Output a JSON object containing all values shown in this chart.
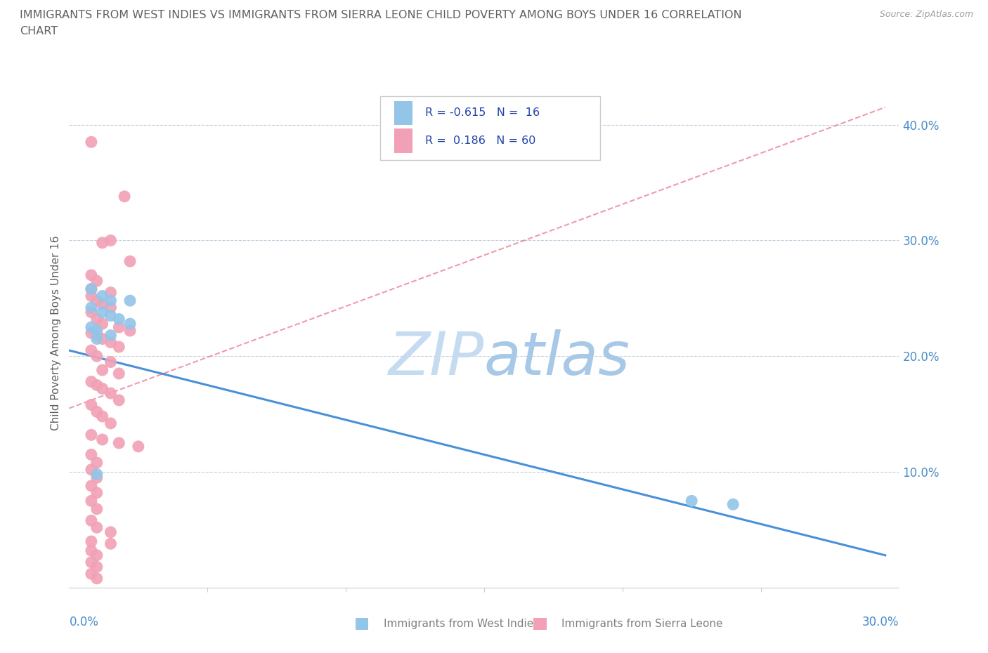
{
  "title_line1": "IMMIGRANTS FROM WEST INDIES VS IMMIGRANTS FROM SIERRA LEONE CHILD POVERTY AMONG BOYS UNDER 16 CORRELATION",
  "title_line2": "CHART",
  "source": "Source: ZipAtlas.com",
  "ylabel": "Child Poverty Among Boys Under 16",
  "color_blue": "#92C5E8",
  "color_pink": "#F2A0B5",
  "color_blue_line": "#4A90D9",
  "color_pink_line": "#E87090",
  "color_grid": "#C0D0E0",
  "watermark_zip": "#C5DCF0",
  "watermark_atlas": "#A8C8E8",
  "title_color": "#606060",
  "axis_label_color": "#4A8CC8",
  "legend_color": "#2244AA",
  "source_color": "#A0A0A0",
  "bottom_legend_color": "#808080",
  "xlim": [
    0.0,
    0.3
  ],
  "ylim": [
    0.0,
    0.44
  ],
  "ytick_vals": [
    0.1,
    0.2,
    0.3,
    0.4
  ],
  "xtick_vals": [
    0.05,
    0.1,
    0.15,
    0.2,
    0.25
  ],
  "blue_line_x": [
    0.0,
    0.295
  ],
  "blue_line_y": [
    0.205,
    0.028
  ],
  "pink_line_x": [
    0.0,
    0.295
  ],
  "pink_line_y": [
    0.155,
    0.415
  ],
  "blue_points": [
    [
      0.008,
      0.258
    ],
    [
      0.012,
      0.252
    ],
    [
      0.015,
      0.248
    ],
    [
      0.022,
      0.248
    ],
    [
      0.008,
      0.242
    ],
    [
      0.012,
      0.238
    ],
    [
      0.015,
      0.235
    ],
    [
      0.018,
      0.232
    ],
    [
      0.022,
      0.228
    ],
    [
      0.008,
      0.225
    ],
    [
      0.01,
      0.222
    ],
    [
      0.015,
      0.218
    ],
    [
      0.01,
      0.215
    ],
    [
      0.01,
      0.098
    ],
    [
      0.225,
      0.075
    ],
    [
      0.24,
      0.072
    ]
  ],
  "pink_points": [
    [
      0.008,
      0.385
    ],
    [
      0.02,
      0.338
    ],
    [
      0.015,
      0.3
    ],
    [
      0.012,
      0.298
    ],
    [
      0.022,
      0.282
    ],
    [
      0.008,
      0.27
    ],
    [
      0.01,
      0.265
    ],
    [
      0.008,
      0.258
    ],
    [
      0.015,
      0.255
    ],
    [
      0.008,
      0.252
    ],
    [
      0.01,
      0.248
    ],
    [
      0.012,
      0.245
    ],
    [
      0.015,
      0.242
    ],
    [
      0.008,
      0.238
    ],
    [
      0.01,
      0.232
    ],
    [
      0.012,
      0.228
    ],
    [
      0.018,
      0.225
    ],
    [
      0.022,
      0.222
    ],
    [
      0.008,
      0.22
    ],
    [
      0.01,
      0.218
    ],
    [
      0.012,
      0.215
    ],
    [
      0.015,
      0.212
    ],
    [
      0.018,
      0.208
    ],
    [
      0.008,
      0.205
    ],
    [
      0.01,
      0.2
    ],
    [
      0.015,
      0.195
    ],
    [
      0.012,
      0.188
    ],
    [
      0.018,
      0.185
    ],
    [
      0.008,
      0.178
    ],
    [
      0.01,
      0.175
    ],
    [
      0.012,
      0.172
    ],
    [
      0.015,
      0.168
    ],
    [
      0.018,
      0.162
    ],
    [
      0.008,
      0.158
    ],
    [
      0.01,
      0.152
    ],
    [
      0.012,
      0.148
    ],
    [
      0.015,
      0.142
    ],
    [
      0.008,
      0.132
    ],
    [
      0.012,
      0.128
    ],
    [
      0.018,
      0.125
    ],
    [
      0.025,
      0.122
    ],
    [
      0.008,
      0.115
    ],
    [
      0.01,
      0.108
    ],
    [
      0.008,
      0.102
    ],
    [
      0.01,
      0.095
    ],
    [
      0.008,
      0.088
    ],
    [
      0.01,
      0.082
    ],
    [
      0.008,
      0.075
    ],
    [
      0.01,
      0.068
    ],
    [
      0.008,
      0.058
    ],
    [
      0.01,
      0.052
    ],
    [
      0.015,
      0.048
    ],
    [
      0.008,
      0.04
    ],
    [
      0.015,
      0.038
    ],
    [
      0.008,
      0.032
    ],
    [
      0.01,
      0.028
    ],
    [
      0.008,
      0.022
    ],
    [
      0.01,
      0.018
    ],
    [
      0.008,
      0.012
    ],
    [
      0.01,
      0.008
    ]
  ]
}
